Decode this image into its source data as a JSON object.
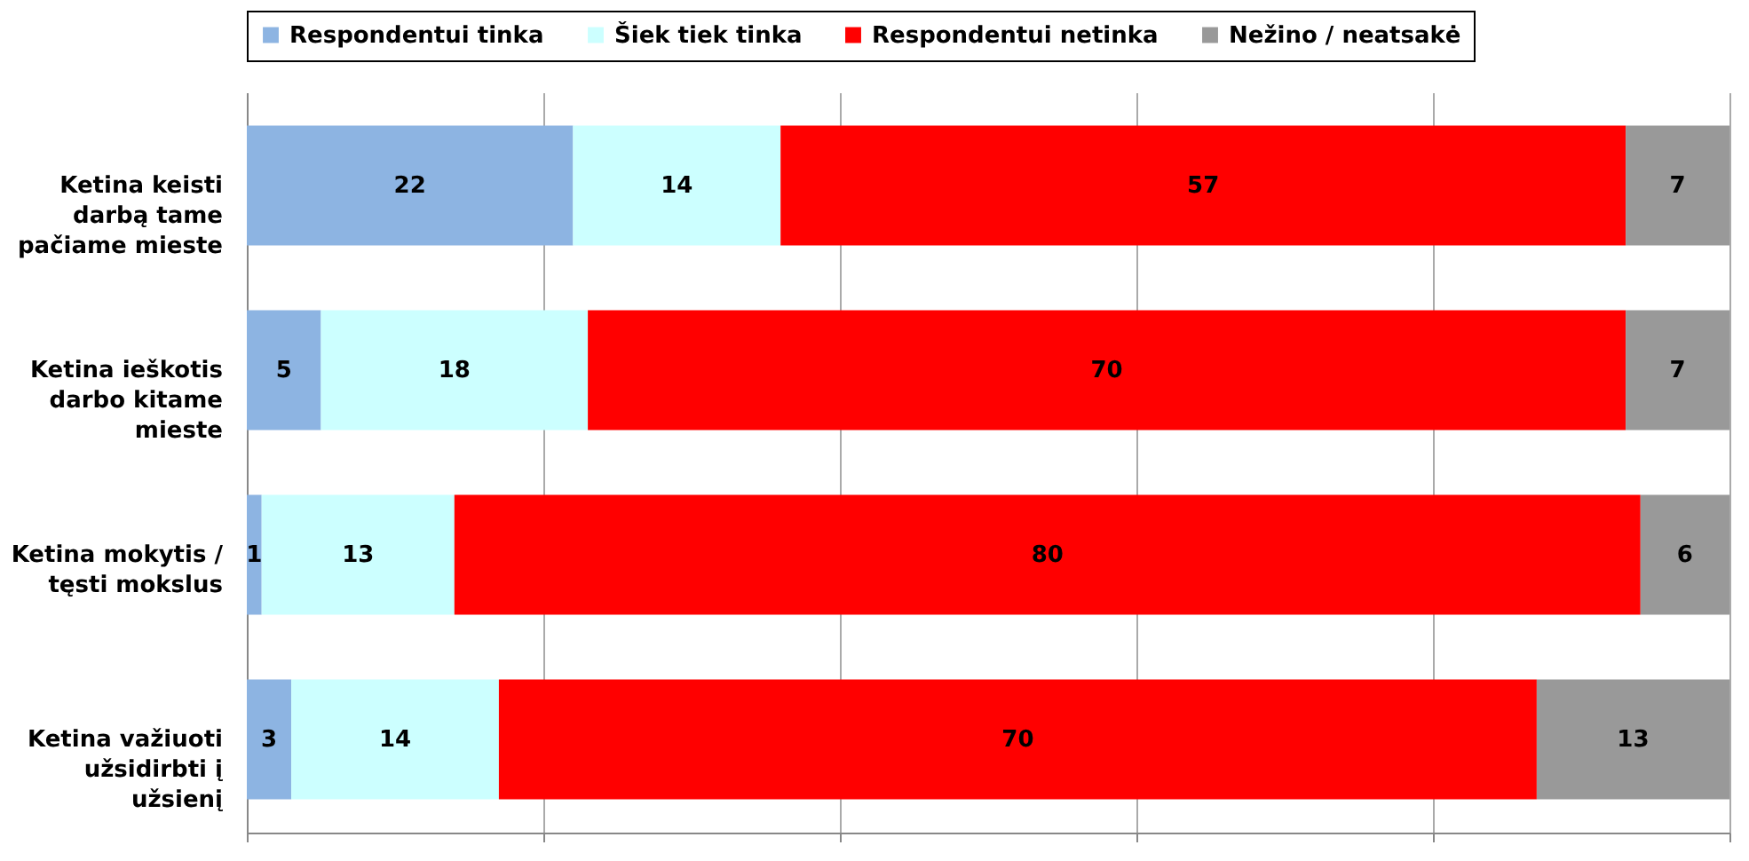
{
  "chart_data": {
    "type": "bar",
    "orientation": "horizontal",
    "stacked": true,
    "categories": [
      "Ketina keisti darbą tame pačiame mieste",
      "Ketina ieškotis darbo kitame mieste",
      "Ketina mokytis / tęsti mokslus",
      "Ketina važiuoti užsidirbti į užsienį"
    ],
    "series": [
      {
        "name": "Respondentui tinka",
        "color": "#8db4e2",
        "values": [
          22,
          5,
          1,
          3
        ]
      },
      {
        "name": "Šiek tiek tinka",
        "color": "#ccffff",
        "values": [
          14,
          18,
          13,
          14
        ]
      },
      {
        "name": "Respondentui netinka",
        "color": "#ff0000",
        "values": [
          57,
          70,
          80,
          70
        ]
      },
      {
        "name": "Nežino / neatsakė",
        "color": "#999999",
        "values": [
          7,
          7,
          6,
          13
        ]
      }
    ],
    "xlim": [
      0,
      100
    ],
    "xticks": [
      {
        "value": 0,
        "label": null
      },
      {
        "value": 20,
        "label": null
      },
      {
        "value": 40,
        "label": null
      },
      {
        "value": 60,
        "label": null
      },
      {
        "value": 80,
        "label": null
      },
      {
        "value": 100,
        "label": null
      }
    ],
    "grid": "x",
    "legend": "top",
    "tick_labels": "y",
    "data_labels": true
  }
}
